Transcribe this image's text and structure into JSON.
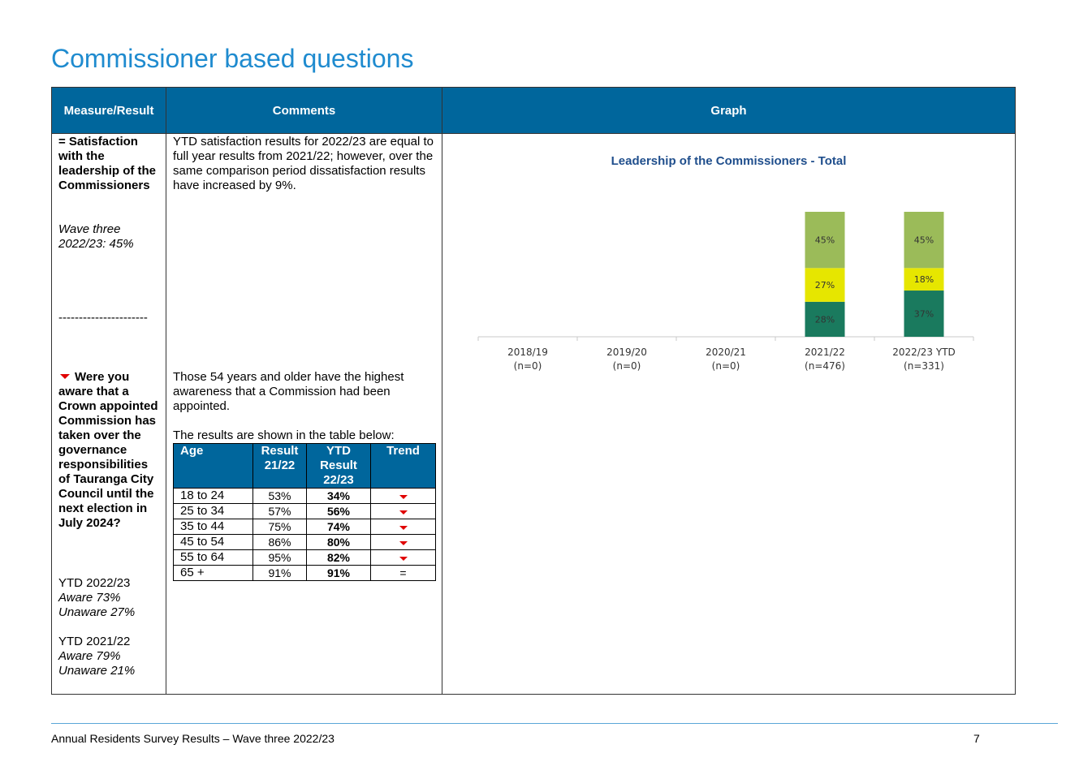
{
  "page_title": "Commissioner based questions",
  "table_headers": {
    "measure": "Measure/Result",
    "comments": "Comments",
    "graph": "Graph"
  },
  "measure1": {
    "text": "= Satisfaction with the leadership of the Commissioners",
    "result": "Wave three 2022/23: 45%",
    "separator": "----------------------"
  },
  "measure2": {
    "question": "Were you aware that a Crown appointed Commission has taken over the governance responsibilities of Tauranga City Council until the next election in July 2024?",
    "ytd_2223_label": "YTD 2022/23",
    "ytd_2223_aware": "Aware 73%",
    "ytd_2223_unaware": "Unaware 27%",
    "ytd_2122_label": "YTD 2021/22",
    "ytd_2122_aware": "Aware 79%",
    "ytd_2122_unaware": "Unaware 21%"
  },
  "comment1": "YTD satisfaction results for 2022/23 are equal to full year results from 2021/22; however, over the same comparison period dissatisfaction results have increased by 9%.",
  "comment2": "Those 54 years and older have the highest awareness that a Commission had been appointed.",
  "comment2_table_intro": "The results are shown in the table below:",
  "age_table": {
    "headers": [
      "Age",
      "Result 21/22",
      "YTD Result 22/23",
      "Trend"
    ],
    "rows": [
      {
        "age": "18 to 24",
        "r2122": "53%",
        "r2223": "34%",
        "trend": "down"
      },
      {
        "age": "25 to 34",
        "r2122": "57%",
        "r2223": "56%",
        "trend": "down"
      },
      {
        "age": "35 to 44",
        "r2122": "75%",
        "r2223": "74%",
        "trend": "down"
      },
      {
        "age": "45 to 54",
        "r2122": "86%",
        "r2223": "80%",
        "trend": "down"
      },
      {
        "age": "55 to 64",
        "r2122": "95%",
        "r2223": "82%",
        "trend": "down"
      },
      {
        "age": "65 +",
        "r2122": "91%",
        "r2223": "91%",
        "trend": "="
      }
    ]
  },
  "colors": {
    "title": "#1f8bcf",
    "header_bg": "#00669c",
    "trend_down": "#e00000",
    "seg_dissatisfied": "#1a7a5e",
    "seg_neutral": "#e6e600",
    "seg_satisfied": "#9bbb59"
  },
  "chart_data": {
    "type": "bar",
    "title": "Leadership of the Commissioners - Total",
    "categories": [
      "2018/19",
      "2019/20",
      "2020/21",
      "2021/22",
      "2022/23 YTD"
    ],
    "sample_sizes": [
      "(n=0)",
      "(n=0)",
      "(n=0)",
      "(n=476)",
      "(n=331)"
    ],
    "stacked": true,
    "series": [
      {
        "values": [
          null,
          null,
          null,
          28,
          37
        ],
        "color": "#1a7a5e"
      },
      {
        "values": [
          null,
          null,
          null,
          27,
          18
        ],
        "color": "#e6e600"
      },
      {
        "values": [
          null,
          null,
          null,
          45,
          45
        ],
        "color": "#9bbb59"
      }
    ],
    "ylim": [
      0,
      100
    ],
    "grid": false
  },
  "footer": {
    "left": "Annual Residents Survey Results – Wave three 2022/23",
    "page": "7"
  }
}
